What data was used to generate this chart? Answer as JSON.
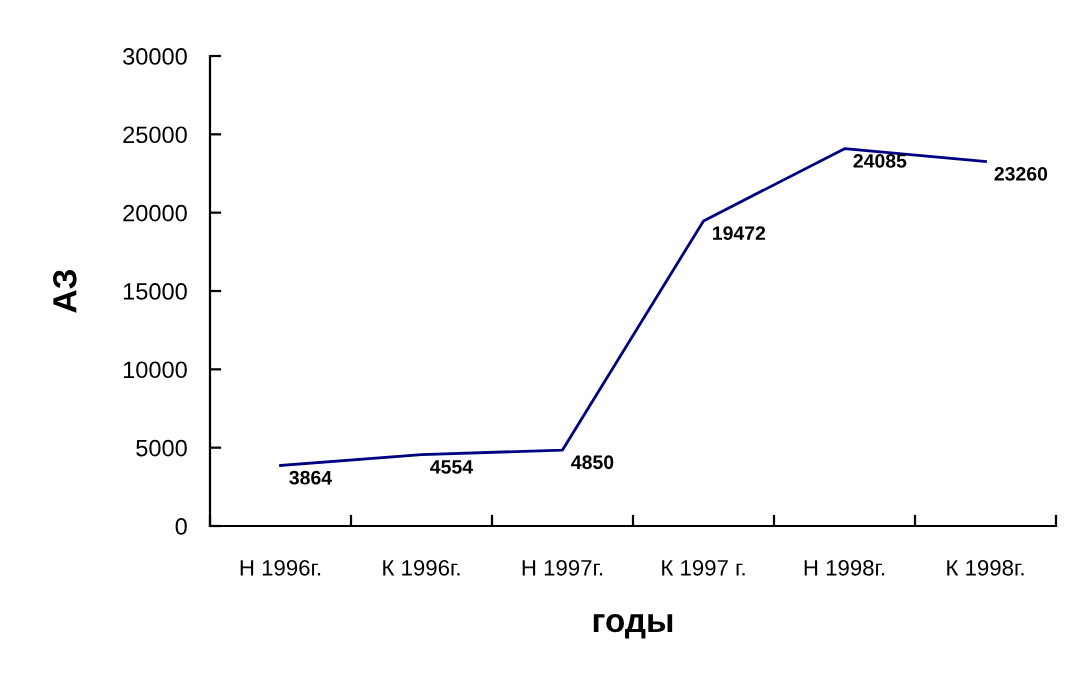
{
  "chart_data": {
    "type": "line",
    "xlabel": "годы",
    "ylabel": "АЗ",
    "categories": [
      "Н 1996г.",
      "К 1996г.",
      "Н 1997г.",
      "К 1997 г.",
      "Н 1998г.",
      "К 1998г."
    ],
    "series": [
      {
        "color": "#000080",
        "values": [
          3864,
          4554,
          4850,
          19472,
          24085,
          23260
        ]
      }
    ],
    "ylim": [
      0,
      30000
    ],
    "yticks": [
      0,
      5000,
      10000,
      15000,
      20000,
      25000,
      30000
    ],
    "grid": false,
    "marker": "none",
    "line_style": "solid",
    "data_labels": true
  }
}
